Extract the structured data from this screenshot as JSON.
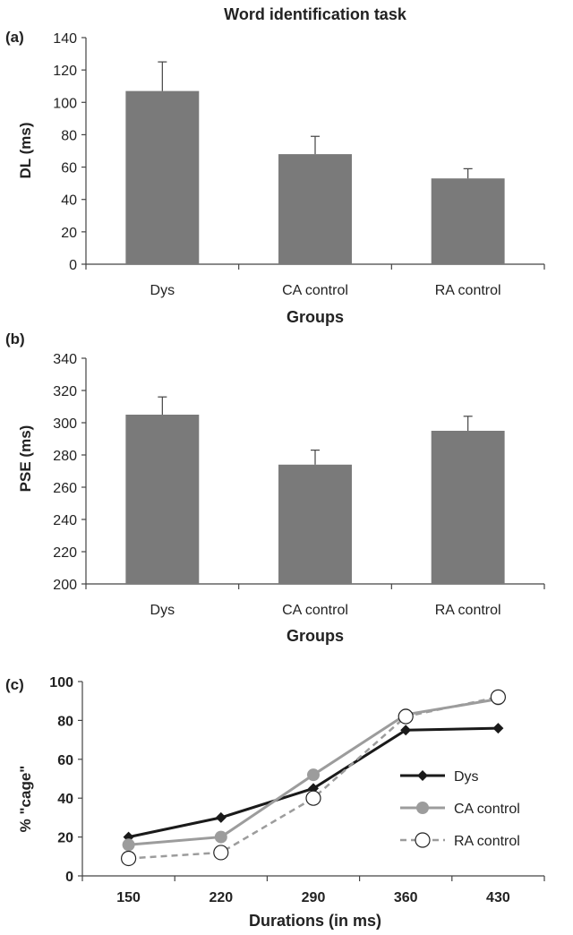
{
  "colors": {
    "bar": "#7a7a7a",
    "axis": "#444444",
    "dys": "#1a1a1a",
    "ca": "#9c9c9c",
    "ra": "#9c9c9c"
  },
  "chart_data": [
    {
      "panel": "(a)",
      "type": "bar",
      "title": "Word identification task",
      "categories": [
        "Dys",
        "CA control",
        "RA control"
      ],
      "values": [
        107,
        68,
        53
      ],
      "error": [
        18,
        11,
        6
      ],
      "xlabel": "Groups",
      "ylabel": "DL (ms)",
      "ylim": [
        0,
        140
      ],
      "yticks": [
        0,
        20,
        40,
        60,
        80,
        100,
        120,
        140
      ]
    },
    {
      "panel": "(b)",
      "type": "bar",
      "categories": [
        "Dys",
        "CA control",
        "RA control"
      ],
      "values": [
        305,
        274,
        295
      ],
      "error": [
        11,
        9,
        9
      ],
      "xlabel": "Groups",
      "ylabel": "PSE (ms)",
      "ylim": [
        200,
        340
      ],
      "yticks": [
        200,
        220,
        240,
        260,
        280,
        300,
        320,
        340
      ]
    },
    {
      "panel": "(c)",
      "type": "line",
      "x": [
        150,
        220,
        290,
        360,
        430
      ],
      "xlabel": "Durations (in ms)",
      "ylabel": "% \"cage\"",
      "ylim": [
        0,
        100
      ],
      "yticks": [
        0,
        20,
        40,
        60,
        80,
        100
      ],
      "series": [
        {
          "name": "Dys",
          "values": [
            20,
            30,
            45,
            75,
            76
          ],
          "marker": "diamond",
          "style": "solid"
        },
        {
          "name": "CA control",
          "values": [
            16,
            20,
            52,
            83,
            91
          ],
          "marker": "circle-filled",
          "style": "solid"
        },
        {
          "name": "RA control",
          "values": [
            9,
            12,
            40,
            82,
            92
          ],
          "marker": "circle-open",
          "style": "dashed"
        }
      ],
      "legend": "center-right"
    }
  ]
}
